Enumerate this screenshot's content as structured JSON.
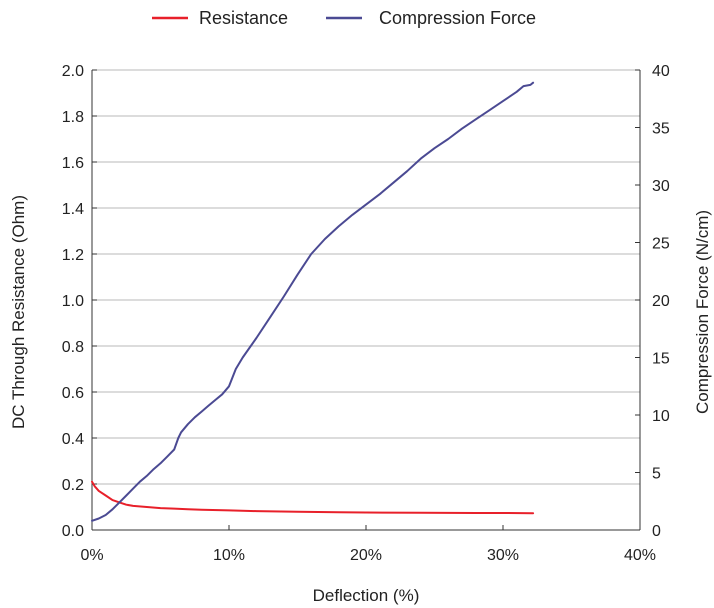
{
  "chart_data": {
    "type": "line",
    "title": "",
    "xlabel": "Deflection (%)",
    "ylabel_left": "DC Through Resistance (Ohm)",
    "ylabel_right": "Compression Force (N/cm)",
    "xlim": [
      0,
      40
    ],
    "ylim_left": [
      0,
      2.0
    ],
    "ylim_right": [
      0,
      40
    ],
    "x_ticks": [
      0,
      10,
      20,
      30,
      40
    ],
    "x_tick_labels": [
      "0%",
      "10%",
      "20%",
      "30%",
      "40%"
    ],
    "y_left_ticks": [
      0.0,
      0.2,
      0.4,
      0.6,
      0.8,
      1.0,
      1.2,
      1.4,
      1.6,
      1.8,
      2.0
    ],
    "y_left_tick_labels": [
      "0.0",
      "0.2",
      "0.4",
      "0.6",
      "0.8",
      "1.0",
      "1.2",
      "1.4",
      "1.6",
      "1.8",
      "2.0"
    ],
    "y_right_ticks": [
      0,
      5,
      10,
      15,
      20,
      25,
      30,
      35,
      40
    ],
    "y_right_tick_labels": [
      "0",
      "5",
      "10",
      "15",
      "20",
      "25",
      "30",
      "35",
      "40"
    ],
    "grid": "horizontal",
    "legend_position": "top-center",
    "series": [
      {
        "name": "Resistance",
        "axis": "left",
        "color": "#e8202a",
        "x": [
          0,
          0.2,
          0.5,
          1.0,
          1.5,
          2.0,
          2.5,
          3.0,
          4.0,
          5.0,
          6.0,
          7.0,
          8.0,
          10.0,
          12.0,
          15.0,
          18.0,
          20.0,
          24.0,
          28.0,
          30.0,
          32.2
        ],
        "y": [
          0.21,
          0.19,
          0.17,
          0.15,
          0.13,
          0.12,
          0.11,
          0.105,
          0.1,
          0.095,
          0.093,
          0.09,
          0.088,
          0.085,
          0.082,
          0.079,
          0.077,
          0.076,
          0.075,
          0.074,
          0.074,
          0.073
        ]
      },
      {
        "name": "Compression Force",
        "axis": "right",
        "color": "#4b4a93",
        "x": [
          0,
          0.5,
          1.0,
          1.5,
          2.0,
          2.5,
          3.0,
          3.5,
          4.0,
          4.5,
          5.0,
          5.5,
          6.0,
          6.3,
          6.5,
          7.0,
          7.5,
          8.0,
          8.5,
          9.0,
          9.5,
          10.0,
          10.5,
          11.0,
          12.0,
          13.0,
          14.0,
          15.0,
          16.0,
          17.0,
          18.0,
          19.0,
          20.0,
          21.0,
          22.0,
          23.0,
          24.0,
          25.0,
          26.0,
          27.0,
          28.0,
          29.0,
          30.0,
          31.0,
          31.5,
          32.0,
          32.2
        ],
        "y": [
          0.8,
          1.0,
          1.3,
          1.8,
          2.4,
          3.0,
          3.6,
          4.2,
          4.7,
          5.3,
          5.8,
          6.4,
          7.0,
          8.0,
          8.5,
          9.2,
          9.8,
          10.3,
          10.8,
          11.3,
          11.8,
          12.5,
          14.0,
          15.0,
          16.7,
          18.5,
          20.3,
          22.2,
          24.0,
          25.3,
          26.4,
          27.4,
          28.3,
          29.2,
          30.2,
          31.2,
          32.3,
          33.2,
          34.0,
          34.9,
          35.7,
          36.5,
          37.3,
          38.1,
          38.6,
          38.7,
          38.9
        ]
      }
    ]
  }
}
